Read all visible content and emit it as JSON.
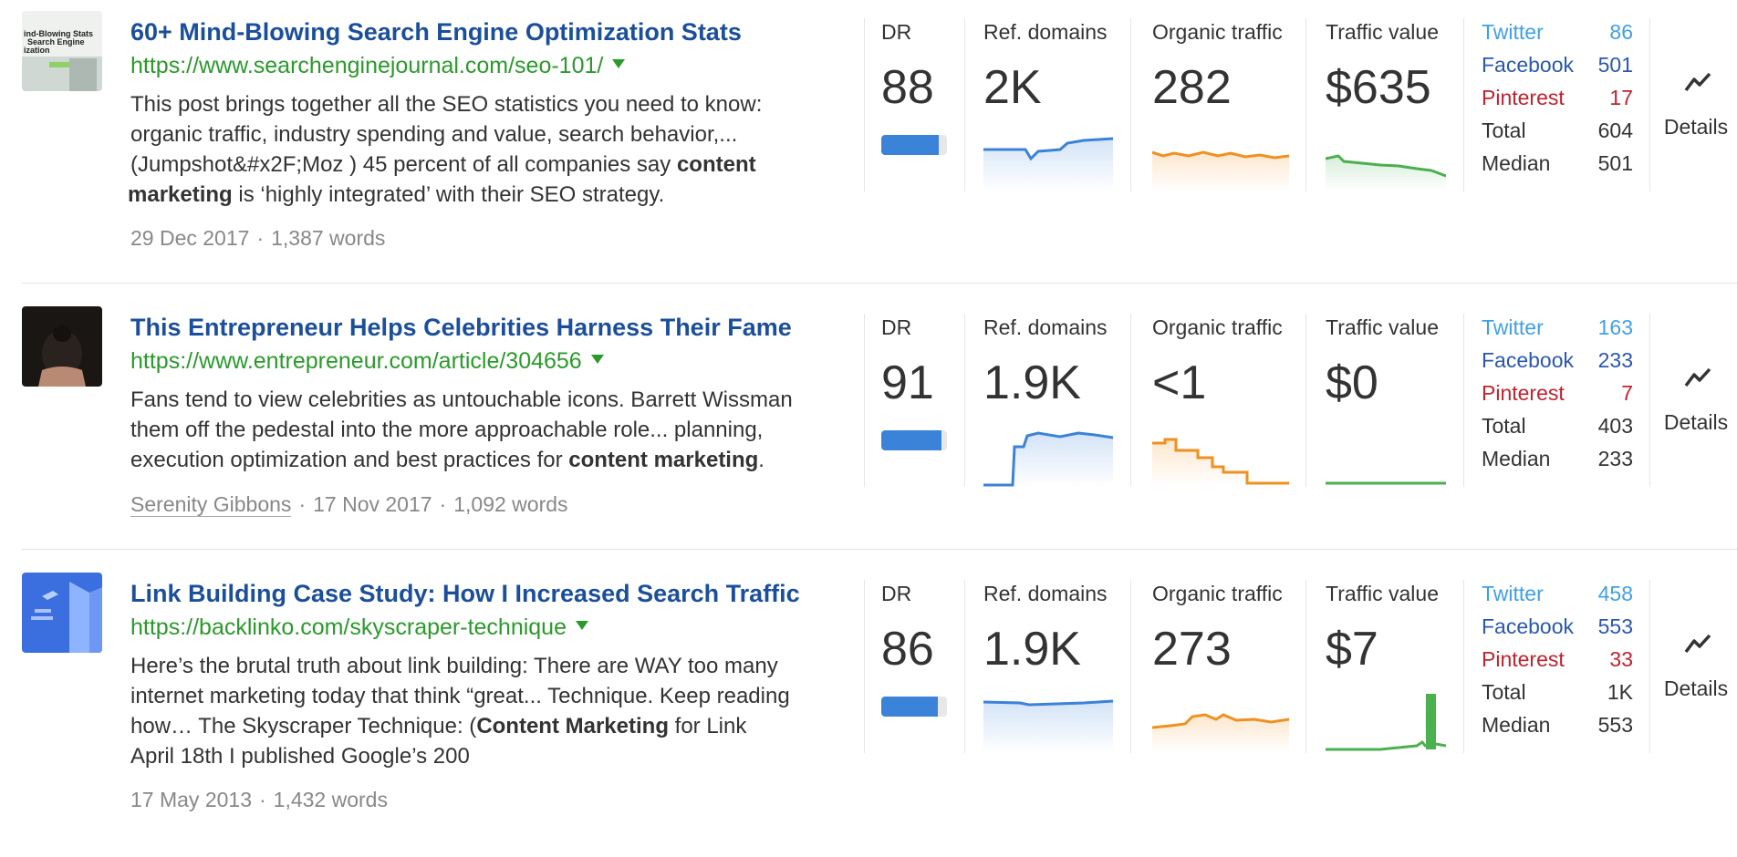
{
  "labels": {
    "dr": "DR",
    "ref_domains": "Ref. domains",
    "organic_traffic": "Organic traffic",
    "traffic_value": "Traffic value",
    "twitter": "Twitter",
    "facebook": "Facebook",
    "pinterest": "Pinterest",
    "total": "Total",
    "median": "Median",
    "details": "Details"
  },
  "icons": {
    "details": "trend-line-icon",
    "url_dropdown": "caret-down-icon"
  },
  "colors": {
    "title": "#1b4f9b",
    "url": "#2a9a2a",
    "ref_domains_line": "#3b82d9",
    "organic_traffic_line": "#f0901e",
    "traffic_value_line": "#4caf50",
    "dr_bar": "#3b82d9",
    "twitter": "#3fa0e8",
    "facebook": "#2a58b0",
    "pinterest": "#c0222e"
  },
  "results": [
    {
      "title": "60+ Mind-Blowing Search Engine Optimization Stats",
      "url": "https://www.searchenginejournal.com/seo-101/",
      "thumbnail_text": [
        "ind-Blowing Stats",
        "Search Engine",
        "ization"
      ],
      "snippet": {
        "l1": "This post brings together all the SEO statistics you need to know:",
        "l2": "organic traffic, industry spending and value, search behavior,...",
        "l3a": "(Jumpshot&#x2F;Moz ) 45 percent of all companies say ",
        "l3b": "content",
        "l4a": "marketing",
        "l4b": " is ‘highly integrated’ with their SEO strategy."
      },
      "author": "",
      "date": "29 Dec 2017",
      "words": "1,387 words",
      "dr": "88",
      "dr_fraction": 0.88,
      "ref_domains": "2K",
      "organic_traffic": "282",
      "traffic_value": "$635",
      "twitter": "86",
      "facebook": "501",
      "pinterest": "17",
      "total": "604",
      "median": "501"
    },
    {
      "title": "This Entrepreneur Helps Celebrities Harness Their Fame",
      "url": "https://www.entrepreneur.com/article/304656",
      "snippet": {
        "l1": "Fans tend to view celebrities as untouchable icons. Barrett Wissman",
        "l2": "them off the pedestal into the more approachable role... planning,",
        "l3a": "execution optimization and best practices for ",
        "l3b": "content marketing",
        "l3c": "."
      },
      "author": "Serenity Gibbons",
      "date": "17 Nov 2017",
      "words": "1,092 words",
      "dr": "91",
      "dr_fraction": 0.91,
      "ref_domains": "1.9K",
      "organic_traffic": "<1",
      "traffic_value": "$0",
      "twitter": "163",
      "facebook": "233",
      "pinterest": "7",
      "total": "403",
      "median": "233"
    },
    {
      "title": "Link Building Case Study: How I Increased Search Traffic",
      "url": "https://backlinko.com/skyscraper-technique",
      "snippet": {
        "l1": "Here’s the brutal truth about link building: There are WAY too many",
        "l2": "internet marketing today that think “great... Technique. Keep reading",
        "l3a": "how… The Skyscraper Technique: (",
        "l3b": "Content Marketing",
        "l3c": " for Link",
        "l4": "April 18th I published  Google’s 200"
      },
      "author": "",
      "date": "17 May 2013",
      "words": "1,432 words",
      "dr": "86",
      "dr_fraction": 0.86,
      "ref_domains": "1.9K",
      "organic_traffic": "273",
      "traffic_value": "$7",
      "twitter": "458",
      "facebook": "553",
      "pinterest": "33",
      "total": "1K",
      "median": "553"
    }
  ]
}
